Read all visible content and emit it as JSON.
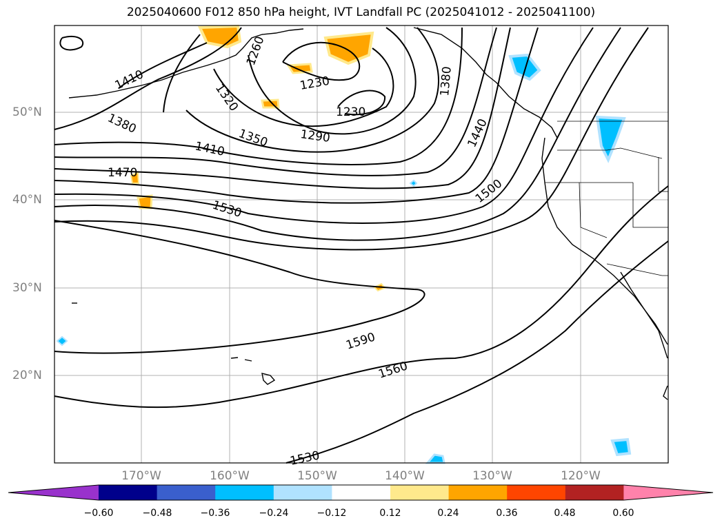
{
  "title": "2025040600 F012 850 hPa height, IVT Landfall PC (2025041012 - 2025041100)",
  "lat_labels": [
    "50°N",
    "40°N",
    "30°N",
    "20°N"
  ],
  "lon_labels": [
    "170°W",
    "160°W",
    "150°W",
    "140°W",
    "130°W",
    "120°W"
  ],
  "contour_labels": [
    "1260",
    "1410",
    "1380",
    "1320",
    "1230",
    "1230",
    "1290",
    "1350",
    "1410",
    "1470",
    "1530",
    "1380",
    "1440",
    "1500",
    "1590",
    "1560",
    "1530"
  ],
  "colorbar": {
    "ticks": [
      "−0.60",
      "−0.48",
      "−0.36",
      "−0.24",
      "−0.12",
      "0.12",
      "0.24",
      "0.36",
      "0.48",
      "0.60"
    ],
    "colors": [
      "#9932cc",
      "#00008b",
      "#3a5fcd",
      "#00bfff",
      "#b0e2ff",
      "#ffffff",
      "#ffe98c",
      "#ffa500",
      "#ff4500",
      "#b22222",
      "#ff82ab"
    ]
  }
}
